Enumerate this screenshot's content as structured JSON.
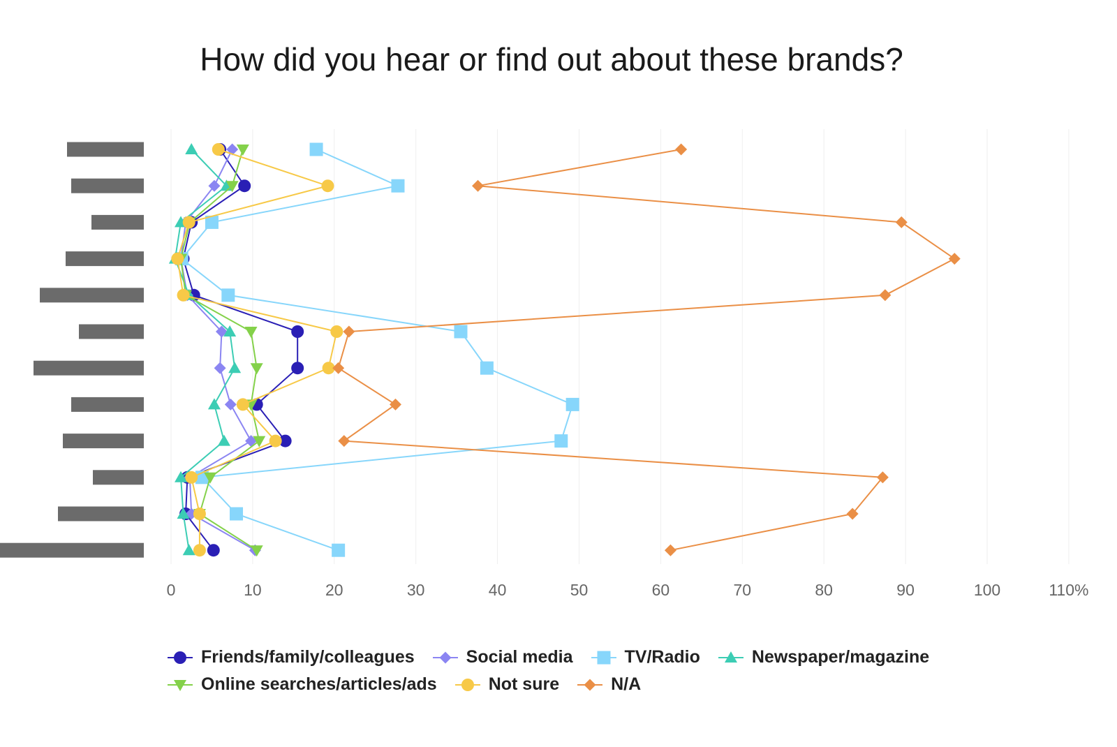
{
  "chart_data": {
    "type": "line",
    "title": "How did you hear or find out about these brands?",
    "orientation": "horizontal",
    "xlim": [
      0,
      110
    ],
    "xticks": [
      "0",
      "10",
      "20",
      "30",
      "40",
      "50",
      "60",
      "70",
      "80",
      "90",
      "100",
      "110%"
    ],
    "grid": true,
    "legend_position": "bottom",
    "category_count": 12,
    "series": [
      {
        "name": "Friends/family/colleagues",
        "color": "#2a1fb5",
        "marker": "circle",
        "values": [
          6,
          9,
          2.5,
          1.5,
          2.8,
          15.5,
          15.5,
          10.5,
          14,
          2,
          1.8,
          5.2
        ]
      },
      {
        "name": "Social media",
        "color": "#8b85f2",
        "marker": "diamond",
        "values": [
          7.5,
          5.3,
          1.8,
          1.2,
          2,
          6.2,
          6,
          7.3,
          9.8,
          2.3,
          2.5,
          10.3
        ]
      },
      {
        "name": "TV/Radio",
        "color": "#87d6fb",
        "marker": "square",
        "values": [
          17.8,
          27.8,
          5,
          1.3,
          7,
          35.5,
          38.7,
          49.2,
          47.8,
          3.8,
          8,
          20.5
        ]
      },
      {
        "name": "Newspaper/magazine",
        "color": "#3ccdb4",
        "marker": "triangle-up",
        "values": [
          2.5,
          6.8,
          1.2,
          0.5,
          2.2,
          7.2,
          7.8,
          5.3,
          6.5,
          1.2,
          1.5,
          2.2
        ]
      },
      {
        "name": "Online searches/articles/ads",
        "color": "#84d14a",
        "marker": "triangle-down",
        "values": [
          8.8,
          7.5,
          2.3,
          1.2,
          1.8,
          9.8,
          10.5,
          9.8,
          10.8,
          4.8,
          3.5,
          10.5
        ]
      },
      {
        "name": "Not sure",
        "color": "#f7c947",
        "marker": "circle",
        "values": [
          5.8,
          19.2,
          2.2,
          0.8,
          1.5,
          20.3,
          19.3,
          8.8,
          12.8,
          2.5,
          3.5,
          3.5
        ]
      },
      {
        "name": "N/A",
        "color": "#ea8f46",
        "marker": "diamond",
        "values": [
          62.5,
          37.6,
          89.5,
          96,
          87.5,
          21.8,
          20.5,
          27.5,
          21.2,
          87.2,
          83.5,
          61.2
        ]
      }
    ],
    "category_label_bars": [
      110,
      104,
      75,
      112,
      149,
      93,
      158,
      104,
      116,
      73,
      123,
      207
    ]
  }
}
